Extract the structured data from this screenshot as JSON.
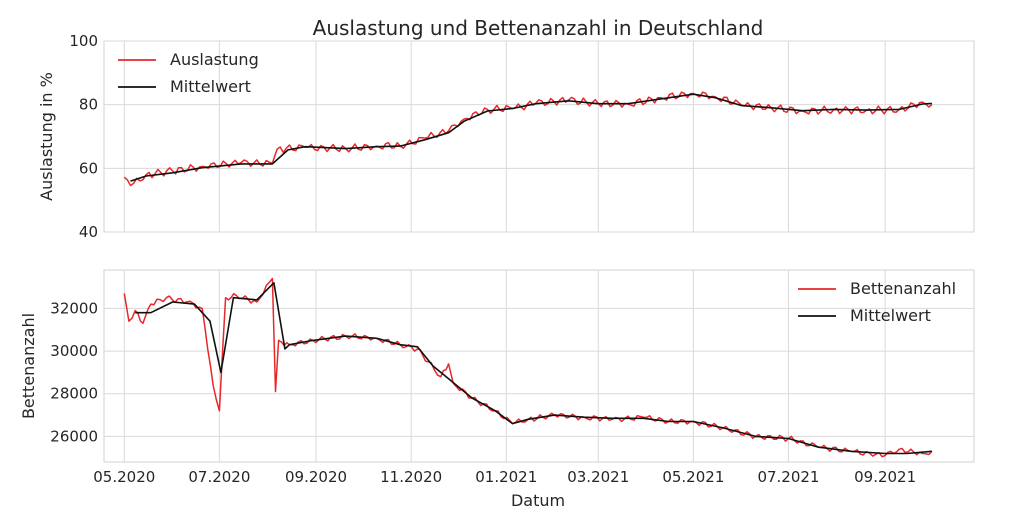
{
  "title": "Auslastung und Bettenanzahl in Deutschland",
  "colors": {
    "raw": "#e8272b",
    "mean": "#111111",
    "grid": "#d9d9d9"
  },
  "chart_data": [
    {
      "type": "line",
      "ylabel": "Auslastung in %",
      "ylim": [
        40,
        100
      ],
      "yticks": [
        "40",
        "60",
        "80",
        "100"
      ],
      "xlim": [
        "2020-04-18",
        "2021-10-28"
      ],
      "legend": "top-left",
      "grid": true,
      "series": [
        {
          "name": "Auslastung",
          "color": "#e8272b",
          "points": [
            [
              "2020-05-01",
              57.2
            ],
            [
              "2020-05-05",
              54.6
            ],
            [
              "2020-05-15",
              58.0
            ],
            [
              "2020-06-01",
              59.2
            ],
            [
              "2020-06-20",
              60.6
            ],
            [
              "2020-07-15",
              61.8
            ],
            [
              "2020-08-04",
              61.6
            ],
            [
              "2020-08-07",
              66.0
            ],
            [
              "2020-08-25",
              66.6
            ],
            [
              "2020-09-20",
              66.2
            ],
            [
              "2020-10-10",
              67.0
            ],
            [
              "2020-10-25",
              67.0
            ],
            [
              "2020-11-10",
              69.5
            ],
            [
              "2020-11-25",
              71.8
            ],
            [
              "2020-12-05",
              75.5
            ],
            [
              "2020-12-20",
              78.5
            ],
            [
              "2021-01-05",
              78.8
            ],
            [
              "2021-01-20",
              80.5
            ],
            [
              "2021-02-10",
              81.5
            ],
            [
              "2021-03-01",
              80.4
            ],
            [
              "2021-03-20",
              80.2
            ],
            [
              "2021-04-10",
              82.2
            ],
            [
              "2021-05-01",
              83.5
            ],
            [
              "2021-05-15",
              82.5
            ],
            [
              "2021-06-01",
              79.8
            ],
            [
              "2021-06-20",
              79.0
            ],
            [
              "2021-07-10",
              78.0
            ],
            [
              "2021-07-30",
              78.4
            ],
            [
              "2021-08-20",
              78.2
            ],
            [
              "2021-09-10",
              78.5
            ],
            [
              "2021-09-25",
              80.8
            ],
            [
              "2021-10-01",
              80.0
            ]
          ]
        },
        {
          "name": "Mittelwert",
          "color": "#111111",
          "points": [
            [
              "2020-05-05",
              56.0
            ],
            [
              "2020-05-15",
              57.6
            ],
            [
              "2020-06-01",
              58.6
            ],
            [
              "2020-06-20",
              60.2
            ],
            [
              "2020-07-15",
              61.4
            ],
            [
              "2020-08-04",
              61.4
            ],
            [
              "2020-08-14",
              65.8
            ],
            [
              "2020-08-25",
              66.8
            ],
            [
              "2020-09-20",
              66.2
            ],
            [
              "2020-10-10",
              66.8
            ],
            [
              "2020-10-25",
              67.0
            ],
            [
              "2020-11-10",
              69.0
            ],
            [
              "2020-11-25",
              71.2
            ],
            [
              "2020-12-05",
              74.8
            ],
            [
              "2020-12-20",
              78.0
            ],
            [
              "2021-01-05",
              78.8
            ],
            [
              "2021-01-20",
              80.3
            ],
            [
              "2021-02-10",
              81.2
            ],
            [
              "2021-03-01",
              80.3
            ],
            [
              "2021-03-20",
              80.3
            ],
            [
              "2021-04-10",
              81.8
            ],
            [
              "2021-05-01",
              83.3
            ],
            [
              "2021-05-15",
              82.2
            ],
            [
              "2021-06-01",
              79.7
            ],
            [
              "2021-06-20",
              79.0
            ],
            [
              "2021-07-10",
              78.1
            ],
            [
              "2021-07-30",
              78.5
            ],
            [
              "2021-08-20",
              78.3
            ],
            [
              "2021-09-10",
              78.5
            ],
            [
              "2021-09-25",
              80.2
            ],
            [
              "2021-10-01",
              80.4
            ]
          ]
        }
      ]
    },
    {
      "type": "line",
      "xlabel": "Datum",
      "ylabel": "Bettenanzahl",
      "ylim": [
        24800,
        33800
      ],
      "yticks": [
        "26000",
        "28000",
        "30000",
        "32000"
      ],
      "xticks": [
        "05.2020",
        "07.2020",
        "09.2020",
        "11.2020",
        "01.2021",
        "03.2021",
        "05.2021",
        "07.2021",
        "09.2021"
      ],
      "xlim": [
        "2020-04-18",
        "2021-10-28"
      ],
      "legend": "top-right",
      "grid": true,
      "series": [
        {
          "name": "Bettenanzahl",
          "color": "#e8272b",
          "points": [
            [
              "2020-05-01",
              32700
            ],
            [
              "2020-05-04",
              31400
            ],
            [
              "2020-05-08",
              31900
            ],
            [
              "2020-05-13",
              31300
            ],
            [
              "2020-05-18",
              32200
            ],
            [
              "2020-05-28",
              32500
            ],
            [
              "2020-06-10",
              32300
            ],
            [
              "2020-06-20",
              32000
            ],
            [
              "2020-06-27",
              28400
            ],
            [
              "2020-07-01",
              27200
            ],
            [
              "2020-07-05",
              32500
            ],
            [
              "2020-07-12",
              32600
            ],
            [
              "2020-07-25",
              32300
            ],
            [
              "2020-08-04",
              33400
            ],
            [
              "2020-08-06",
              28100
            ],
            [
              "2020-08-08",
              30500
            ],
            [
              "2020-08-15",
              30300
            ],
            [
              "2020-08-30",
              30500
            ],
            [
              "2020-09-20",
              30700
            ],
            [
              "2020-10-10",
              30600
            ],
            [
              "2020-10-25",
              30300
            ],
            [
              "2020-11-05",
              30100
            ],
            [
              "2020-11-12",
              29500
            ],
            [
              "2020-11-20",
              28800
            ],
            [
              "2020-11-25",
              29400
            ],
            [
              "2020-11-28",
              28500
            ],
            [
              "2020-12-10",
              27800
            ],
            [
              "2020-12-25",
              27200
            ],
            [
              "2021-01-05",
              26600
            ],
            [
              "2021-01-15",
              26800
            ],
            [
              "2021-02-01",
              27000
            ],
            [
              "2021-02-20",
              26900
            ],
            [
              "2021-03-10",
              26800
            ],
            [
              "2021-03-30",
              26900
            ],
            [
              "2021-04-15",
              26700
            ],
            [
              "2021-05-01",
              26700
            ],
            [
              "2021-05-20",
              26400
            ],
            [
              "2021-06-10",
              26000
            ],
            [
              "2021-07-01",
              25900
            ],
            [
              "2021-07-20",
              25500
            ],
            [
              "2021-08-10",
              25300
            ],
            [
              "2021-09-01",
              25100
            ],
            [
              "2021-09-10",
              25400
            ],
            [
              "2021-09-25",
              25200
            ],
            [
              "2021-10-01",
              25300
            ]
          ]
        },
        {
          "name": "Mittelwert",
          "color": "#111111",
          "points": [
            [
              "2020-05-08",
              31800
            ],
            [
              "2020-05-18",
              31800
            ],
            [
              "2020-06-01",
              32300
            ],
            [
              "2020-06-15",
              32200
            ],
            [
              "2020-06-25",
              31400
            ],
            [
              "2020-07-02",
              29000
            ],
            [
              "2020-07-10",
              32500
            ],
            [
              "2020-07-25",
              32400
            ],
            [
              "2020-08-05",
              33200
            ],
            [
              "2020-08-12",
              30100
            ],
            [
              "2020-08-15",
              30300
            ],
            [
              "2020-08-30",
              30500
            ],
            [
              "2020-09-20",
              30700
            ],
            [
              "2020-10-10",
              30600
            ],
            [
              "2020-10-25",
              30300
            ],
            [
              "2020-11-05",
              30200
            ],
            [
              "2020-11-15",
              29300
            ],
            [
              "2020-11-25",
              28700
            ],
            [
              "2020-12-10",
              27800
            ],
            [
              "2020-12-25",
              27200
            ],
            [
              "2021-01-05",
              26600
            ],
            [
              "2021-01-15",
              26800
            ],
            [
              "2021-02-01",
              27000
            ],
            [
              "2021-02-20",
              26900
            ],
            [
              "2021-03-10",
              26850
            ],
            [
              "2021-03-30",
              26850
            ],
            [
              "2021-04-15",
              26700
            ],
            [
              "2021-05-01",
              26700
            ],
            [
              "2021-05-20",
              26400
            ],
            [
              "2021-06-10",
              26000
            ],
            [
              "2021-07-01",
              25900
            ],
            [
              "2021-07-20",
              25500
            ],
            [
              "2021-08-10",
              25300
            ],
            [
              "2021-09-01",
              25200
            ],
            [
              "2021-09-15",
              25200
            ],
            [
              "2021-10-01",
              25300
            ]
          ]
        }
      ]
    }
  ]
}
